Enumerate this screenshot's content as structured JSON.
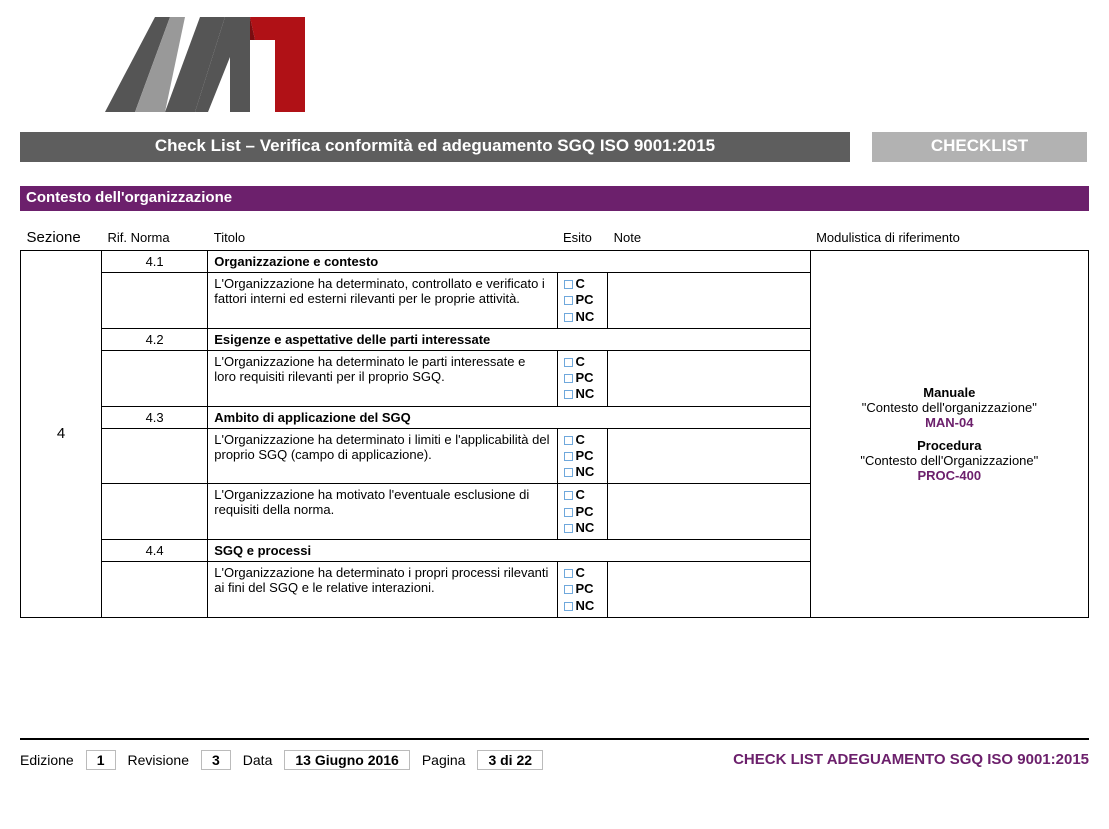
{
  "colors": {
    "title_bar_bg": "#5e5e5e",
    "checklist_bar_bg": "#b2b2b2",
    "section_bar_bg": "#641e63",
    "section_bar_bg_actual": "#6c206c",
    "checkbox_border": "#6fa8dc",
    "mod_code_color": "#6c206c",
    "footer_title_color": "#6c206c"
  },
  "header": {
    "title": "Check List – Verifica conformità ed adeguamento SGQ ISO 9001:2015",
    "checklist_label": "CHECKLIST"
  },
  "section": {
    "label": "Contesto dell'organizzazione"
  },
  "table": {
    "headers": {
      "sezione": "Sezione",
      "rif": "Rif. Norma",
      "titolo": "Titolo",
      "esito": "Esito",
      "note": "Note",
      "modulistica": "Modulistica di riferimento"
    },
    "sezione": "4",
    "esito_options": [
      "C",
      "PC",
      "NC"
    ],
    "rows": [
      {
        "rif": "4.1",
        "titolo": "Organizzazione e contesto",
        "is_header": true
      },
      {
        "rif": "",
        "titolo": "L'Organizzazione ha determinato, controllato e verificato i fattori interni ed esterni rilevanti per le proprie attività.",
        "is_header": false
      },
      {
        "rif": "4.2",
        "titolo": "Esigenze e aspettative delle parti interessate",
        "is_header": true
      },
      {
        "rif": "",
        "titolo": "L'Organizzazione ha determinato le parti interessate e loro requisiti rilevanti per il proprio SGQ.",
        "is_header": false
      },
      {
        "rif": "4.3",
        "titolo": "Ambito di applicazione del SGQ",
        "is_header": true
      },
      {
        "rif": "",
        "titolo": "L'Organizzazione ha determinato i limiti e l'applicabilità del proprio SGQ (campo di applicazione).",
        "is_header": false
      },
      {
        "rif": "",
        "titolo": "L'Organizzazione ha motivato l'eventuale esclusione di requisiti della norma.",
        "is_header": false
      },
      {
        "rif": "4.4",
        "titolo": "SGQ e processi",
        "is_header": true
      },
      {
        "rif": "",
        "titolo": "L'Organizzazione ha determinato i propri processi rilevanti ai fini del SGQ e le relative interazioni.",
        "is_header": false
      }
    ],
    "modulistica": [
      {
        "title": "Manuale",
        "desc": "\"Contesto dell'organizzazione\"",
        "code": "MAN-04"
      },
      {
        "title": "Procedura",
        "desc": "\"Contesto dell'Organizzazione\"",
        "code": "PROC-400"
      }
    ]
  },
  "footer": {
    "edizione_label": "Edizione",
    "edizione": "1",
    "revisione_label": "Revisione",
    "revisione": "3",
    "data_label": "Data",
    "data": "13 Giugno 2016",
    "pagina_label": "Pagina",
    "pagina": "3 di 22",
    "right": "CHECK LIST ADEGUAMENTO SGQ ISO 9001:2015"
  }
}
